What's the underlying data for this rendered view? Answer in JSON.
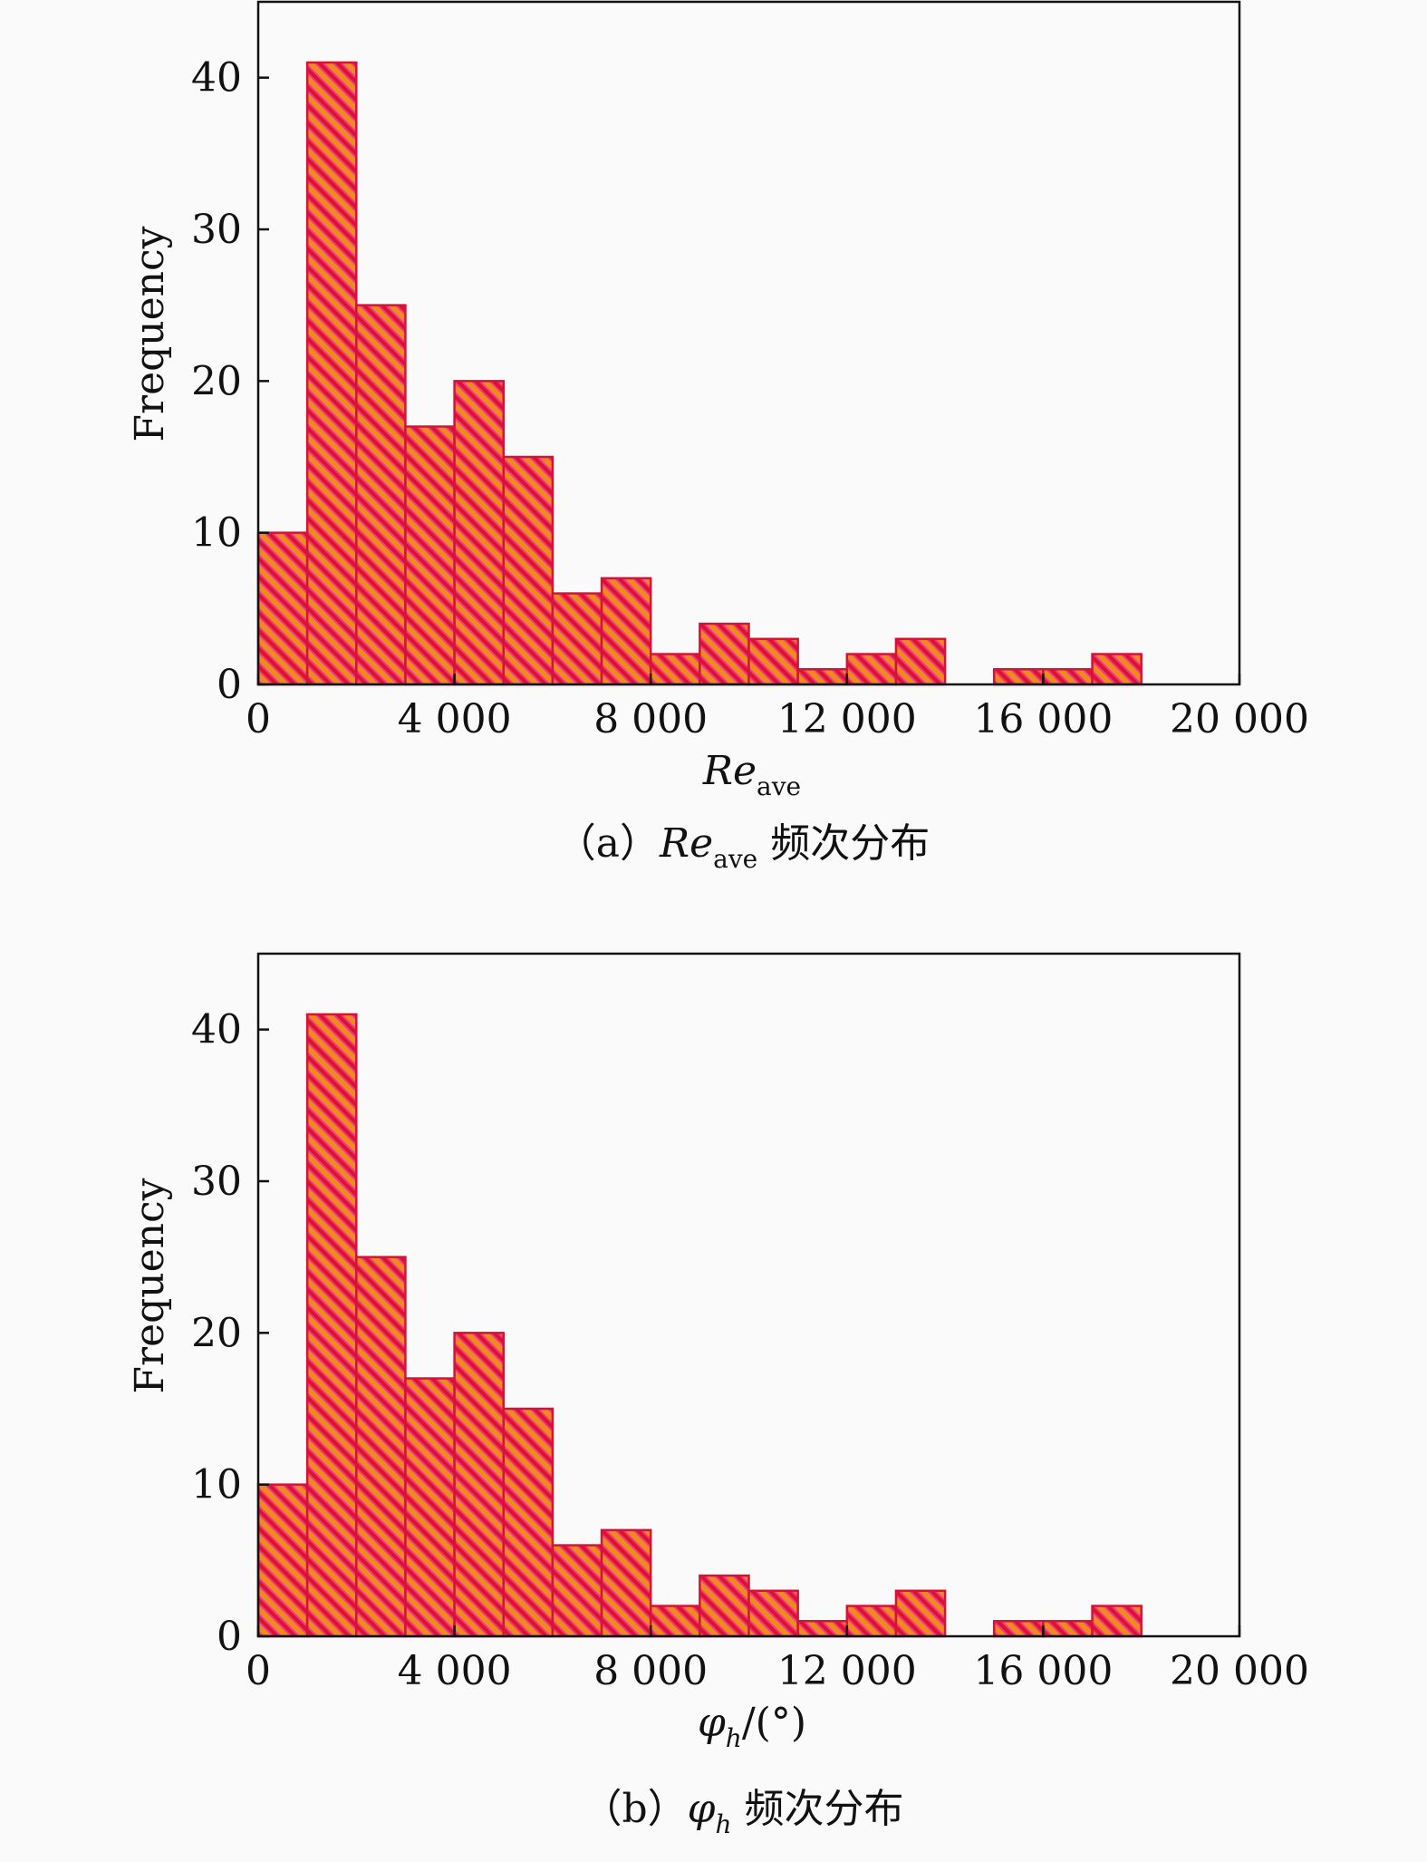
{
  "colors": {
    "bar_edge": "#d4133a",
    "hatch_red": "#e0112b",
    "hatch_orange": "#f08a1c",
    "hatch_fill": "#ec3a8c",
    "background": "#fafafa"
  },
  "chart_data": [
    {
      "type": "bar",
      "panel": "a",
      "bin_edges": [
        0,
        1000,
        2000,
        3000,
        4000,
        5000,
        6000,
        7000,
        8000,
        9000,
        10000,
        11000,
        12000,
        13000,
        14000,
        15000,
        16000,
        17000,
        18000
      ],
      "values": [
        10,
        41,
        25,
        17,
        20,
        15,
        6,
        7,
        2,
        4,
        3,
        1,
        2,
        3,
        0,
        1,
        1,
        2
      ],
      "xlim": [
        0,
        20000
      ],
      "ylim": [
        0,
        45
      ],
      "xticks": [
        "0",
        "4 000",
        "8 000",
        "12 000",
        "16 000",
        "20 000"
      ],
      "xtick_values": [
        0,
        4000,
        8000,
        12000,
        16000,
        20000
      ],
      "yticks": [
        "0",
        "10",
        "20",
        "30",
        "40"
      ],
      "ytick_values": [
        0,
        10,
        20,
        30,
        40
      ],
      "ylabel": "Frequency",
      "xlabel": {
        "main": "Re",
        "sub": "ave"
      },
      "caption": {
        "prefix": "（a）",
        "main": "Re",
        "sub": "ave",
        "suffix": " 频次分布"
      }
    },
    {
      "type": "bar",
      "panel": "b",
      "bin_edges": [
        0,
        1000,
        2000,
        3000,
        4000,
        5000,
        6000,
        7000,
        8000,
        9000,
        10000,
        11000,
        12000,
        13000,
        14000,
        15000,
        16000,
        17000,
        18000
      ],
      "values": [
        10,
        41,
        25,
        17,
        20,
        15,
        6,
        7,
        2,
        4,
        3,
        1,
        2,
        3,
        0,
        1,
        1,
        2
      ],
      "xlim": [
        0,
        20000
      ],
      "ylim": [
        0,
        45
      ],
      "xticks": [
        "0",
        "4 000",
        "8 000",
        "12 000",
        "16 000",
        "20 000"
      ],
      "xtick_values": [
        0,
        4000,
        8000,
        12000,
        16000,
        20000
      ],
      "yticks": [
        "0",
        "10",
        "20",
        "30",
        "40"
      ],
      "ytick_values": [
        0,
        10,
        20,
        30,
        40
      ],
      "ylabel": "Frequency",
      "xlabel": {
        "main": "φ",
        "sub": "h",
        "suffix": "/(°)"
      },
      "caption": {
        "prefix": "（b）",
        "main": "φ",
        "sub": "h",
        "suffix": " 频次分布"
      }
    }
  ]
}
